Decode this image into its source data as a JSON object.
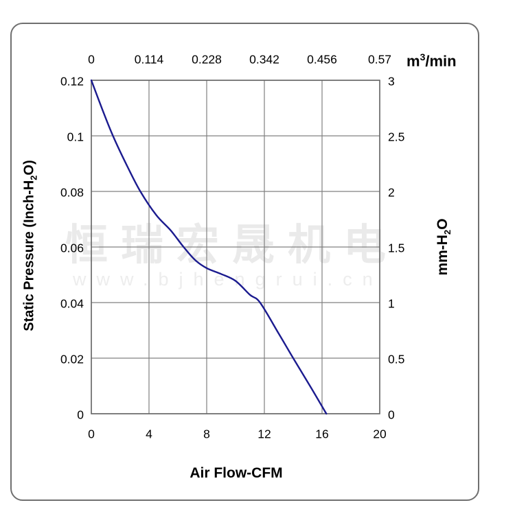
{
  "watermark": {
    "chinese": "恒瑞宏晟机电",
    "url": "www.bjhengrui.cn",
    "color_chinese": "#eaeaea",
    "color_url": "#ededed"
  },
  "chart_data": {
    "type": "line",
    "title": "",
    "grid": true,
    "colors": {
      "grid": "#808080",
      "frame": "#666666",
      "curve": "#1b1b8f",
      "border": "#6f6f6f"
    },
    "x_axis_bottom": {
      "title": "Air Flow-CFM",
      "ticks": [
        "0",
        "4",
        "8",
        "12",
        "16",
        "20"
      ],
      "range": [
        0,
        20
      ]
    },
    "x_axis_top": {
      "unit_base": "m",
      "unit_sup": "3",
      "unit_rest": "/min",
      "ticks": [
        "0",
        "0.114",
        "0.228",
        "0.342",
        "0.456",
        "0.57"
      ]
    },
    "y_axis_left": {
      "title_pre": "Static Pressure (Inch-H",
      "title_sub": "2",
      "title_post": "O)",
      "ticks": [
        "0.12",
        "0.1",
        "0.08",
        "0.06",
        "0.04",
        "0.02",
        "0"
      ],
      "range": [
        0,
        0.12
      ]
    },
    "y_axis_right": {
      "title_pre": "mm-H",
      "title_sub": "2",
      "title_post": "O",
      "ticks": [
        "3",
        "2.5",
        "2",
        "1.5",
        "1",
        "0.5",
        "0"
      ],
      "range": [
        0,
        3
      ]
    },
    "series": [
      {
        "name": "static-pressure-vs-airflow",
        "color": "#1b1b8f",
        "points": [
          [
            0,
            0.12
          ],
          [
            0.8,
            0.109
          ],
          [
            1.5,
            0.1
          ],
          [
            2.5,
            0.089
          ],
          [
            3.4,
            0.08
          ],
          [
            4.5,
            0.0715
          ],
          [
            5.5,
            0.066
          ],
          [
            6.4,
            0.06
          ],
          [
            7.2,
            0.0553
          ],
          [
            8,
            0.0524
          ],
          [
            9,
            0.0503
          ],
          [
            10,
            0.0478
          ],
          [
            11,
            0.0428
          ],
          [
            11.7,
            0.04
          ],
          [
            13,
            0.0288
          ],
          [
            14,
            0.02
          ],
          [
            15.2,
            0.0097
          ],
          [
            16.3,
            0
          ]
        ]
      }
    ]
  }
}
